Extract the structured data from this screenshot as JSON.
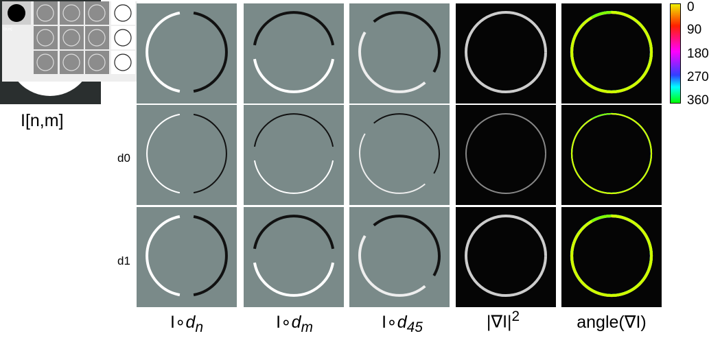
{
  "input_image": {
    "label": "I[n,m]"
  },
  "thumb": {
    "top_left_label": "I[n,m]"
  },
  "rows": [
    {
      "label": ""
    },
    {
      "label": "d0"
    },
    {
      "label": "d1"
    }
  ],
  "columns": [
    {
      "label": "I∘",
      "var": "d",
      "sub": "n"
    },
    {
      "label": "I∘",
      "var": "d",
      "sub": "m"
    },
    {
      "label": "I∘",
      "var": "d",
      "sub": "45"
    },
    {
      "label": "|∇I|",
      "sup": "2"
    },
    {
      "label": "angle(∇I)"
    }
  ],
  "colorbar": {
    "ticks": [
      "0",
      "90",
      "180",
      "270",
      "360"
    ],
    "colors": [
      "#f0f000",
      "#ff2000",
      "#ff00ff",
      "#3040ff",
      "#00ffff",
      "#00ff00"
    ]
  },
  "colors": {
    "gray_panel": "#7a8a89",
    "black_panel": "#050505"
  }
}
